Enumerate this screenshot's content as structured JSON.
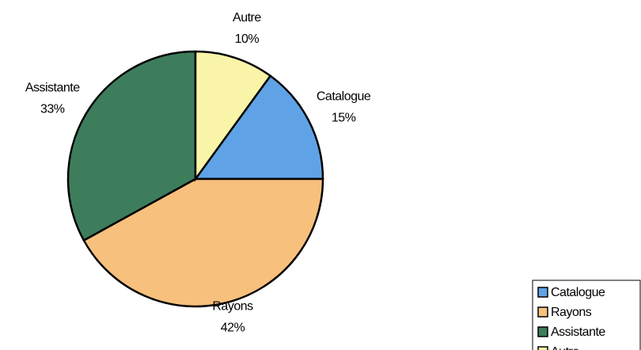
{
  "chart_data": {
    "type": "pie",
    "categories": [
      "Catalogue",
      "Rayons",
      "Assistante",
      "Autre"
    ],
    "values": [
      15,
      42,
      33,
      10
    ],
    "value_labels": [
      "15%",
      "42%",
      "33%",
      "10%"
    ],
    "colors": [
      "#5fa3e6",
      "#f7c07c",
      "#3d7d5c",
      "#f9f4a8"
    ],
    "legend": "lower right"
  }
}
